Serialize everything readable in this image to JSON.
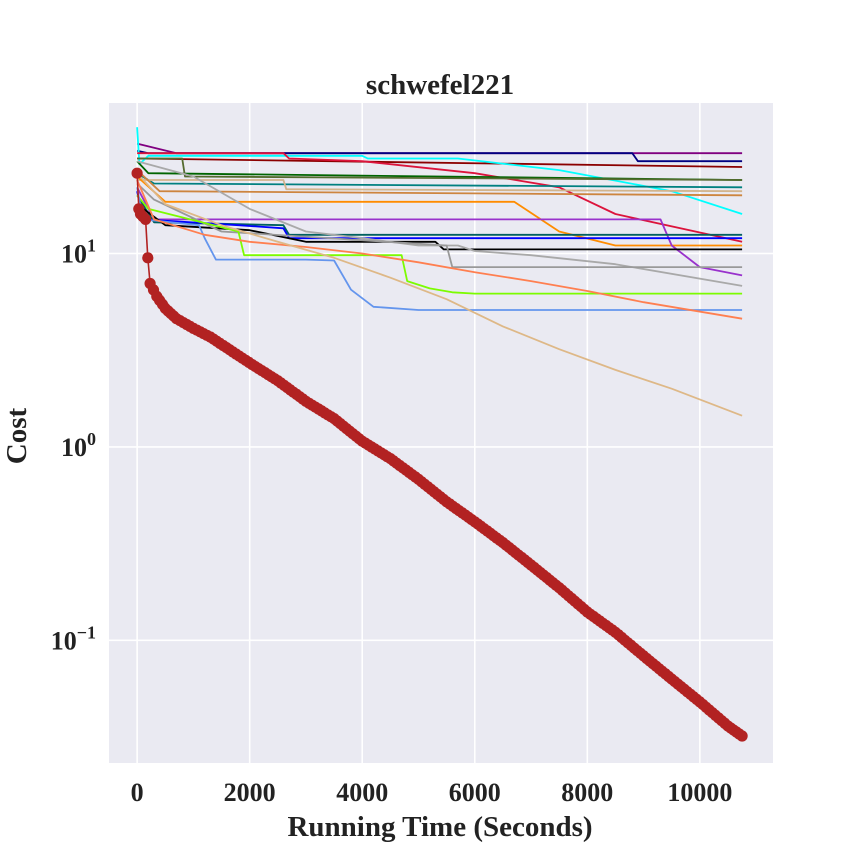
{
  "chart_data": {
    "type": "line",
    "title": "schwefel221",
    "xlabel": "Running Time (Seconds)",
    "ylabel": "Cost",
    "yscale": "log",
    "xlim": [
      -500,
      11300
    ],
    "ylim": [
      0.0232,
      60
    ],
    "grid": true,
    "background": "#eaeaf2",
    "x_ticks": [
      {
        "value": 0,
        "label": "0"
      },
      {
        "value": 2000,
        "label": "2000"
      },
      {
        "value": 4000,
        "label": "4000"
      },
      {
        "value": 6000,
        "label": "6000"
      },
      {
        "value": 8000,
        "label": "8000"
      },
      {
        "value": 10000,
        "label": "10000"
      }
    ],
    "y_ticks": [
      {
        "value": 0.1,
        "base": "10",
        "exp": "−1"
      },
      {
        "value": 1,
        "base": "10",
        "exp": "0"
      },
      {
        "value": 10,
        "base": "10",
        "exp": "1"
      }
    ],
    "series": [
      {
        "name": "purple",
        "color": "#800080",
        "x": [
          0,
          700,
          10750
        ],
        "y": [
          37,
          33,
          33
        ]
      },
      {
        "name": "navy",
        "color": "#000080",
        "x": [
          0,
          200,
          8800,
          8900,
          10750
        ],
        "y": [
          34,
          33,
          33,
          30,
          30
        ]
      },
      {
        "name": "darkred",
        "color": "#8b0000",
        "x": [
          0,
          10750
        ],
        "y": [
          31,
          28
        ]
      },
      {
        "name": "cyan",
        "color": "#00ffff",
        "x": [
          0,
          40,
          200,
          4000,
          4100,
          5700,
          7500,
          9500,
          10750
        ],
        "y": [
          45,
          29,
          32,
          32,
          31,
          31,
          27,
          21,
          16
        ]
      },
      {
        "name": "crimson",
        "color": "#dc143c",
        "x": [
          0,
          2600,
          2700,
          4000,
          6000,
          7500,
          8500,
          10750
        ],
        "y": [
          33,
          33,
          31,
          30,
          26,
          22,
          16,
          11.5
        ]
      },
      {
        "name": "darkgreen",
        "color": "#006400",
        "x": [
          0,
          200,
          10750
        ],
        "y": [
          30,
          26,
          24
        ]
      },
      {
        "name": "darkolive",
        "color": "#556b2f",
        "x": [
          0,
          800,
          850,
          10750
        ],
        "y": [
          31,
          31,
          25,
          24
        ]
      },
      {
        "name": "teal",
        "color": "#008080",
        "x": [
          0,
          300,
          10750
        ],
        "y": [
          26,
          23,
          22
        ]
      },
      {
        "name": "tan",
        "color": "#d2b48c",
        "x": [
          0,
          2600,
          2650,
          10750
        ],
        "y": [
          24,
          24,
          21.5,
          21
        ]
      },
      {
        "name": "peru",
        "color": "#cd853f",
        "x": [
          0,
          400,
          10750
        ],
        "y": [
          27,
          21,
          20
        ]
      },
      {
        "name": "darkorange",
        "color": "#ff8c00",
        "x": [
          0,
          500,
          5500,
          6700,
          7500,
          8500,
          10750
        ],
        "y": [
          25,
          18.5,
          18.5,
          18.5,
          13,
          11,
          11
        ]
      },
      {
        "name": "mediumorchid",
        "color": "#9932cc",
        "x": [
          0,
          300,
          9300,
          9500,
          10000,
          10750
        ],
        "y": [
          22,
          15,
          15,
          11,
          8.5,
          7.7
        ]
      },
      {
        "name": "bluegreen",
        "color": "#006060",
        "x": [
          0,
          300,
          2600,
          2700,
          10750
        ],
        "y": [
          20,
          14.5,
          14,
          12.5,
          12.5
        ]
      },
      {
        "name": "blue",
        "color": "#0000ff",
        "x": [
          0,
          100,
          1800,
          2600,
          2700,
          10750
        ],
        "y": [
          21,
          15,
          14,
          13.5,
          12,
          12
        ]
      },
      {
        "name": "black",
        "color": "#000000",
        "x": [
          0,
          500,
          2000,
          3000,
          5300,
          5450,
          10750
        ],
        "y": [
          18,
          14,
          13.2,
          11.5,
          11.5,
          10.5,
          10.5
        ]
      },
      {
        "name": "darkgray",
        "color": "#a9a9a9",
        "x": [
          0,
          1000,
          2000,
          3000,
          4000,
          5000,
          5700,
          6000,
          7000,
          8500,
          10750
        ],
        "y": [
          30,
          25,
          17,
          13,
          12,
          11,
          11,
          10.3,
          9.8,
          8.8,
          6.8
        ]
      },
      {
        "name": "gray",
        "color": "#999999",
        "x": [
          0,
          300,
          1500,
          5500,
          5600,
          6000,
          10750
        ],
        "y": [
          23,
          19,
          13,
          11,
          8.5,
          8.5,
          8.5
        ]
      },
      {
        "name": "chartreuse",
        "color": "#7cfc00",
        "x": [
          0,
          200,
          1800,
          1900,
          3000,
          4700,
          4800,
          5200,
          5600,
          6000,
          10750
        ],
        "y": [
          20,
          17,
          13,
          9.8,
          9.8,
          9.8,
          7.2,
          6.6,
          6.3,
          6.2,
          6.2
        ]
      },
      {
        "name": "cornflowerblue",
        "color": "#6495ed",
        "x": [
          0,
          100,
          1100,
          1200,
          1400,
          3000,
          3500,
          3800,
          4200,
          5000,
          10750
        ],
        "y": [
          22,
          15,
          14,
          12,
          9.3,
          9.3,
          9.2,
          6.5,
          5.3,
          5.1,
          5.1
        ]
      },
      {
        "name": "coral",
        "color": "#ff7f50",
        "x": [
          0,
          300,
          1200,
          2000,
          3000,
          4000,
          5000,
          6000,
          7000,
          8000,
          9000,
          10750
        ],
        "y": [
          24,
          15,
          12.5,
          11.5,
          10.8,
          10,
          9,
          8,
          7.2,
          6.4,
          5.6,
          4.6
        ]
      },
      {
        "name": "burlywood",
        "color": "#deb887",
        "x": [
          0,
          500,
          1500,
          2500,
          3500,
          4500,
          5500,
          6500,
          7500,
          8500,
          9500,
          10750
        ],
        "y": [
          26,
          18,
          14,
          11.5,
          9.5,
          7.5,
          5.8,
          4.2,
          3.2,
          2.5,
          2,
          1.45
        ]
      },
      {
        "name": "firebrick-markers",
        "color": "#b22222",
        "markers": true,
        "x": [
          0,
          30,
          60,
          150,
          190,
          230,
          350,
          500,
          700,
          1000,
          1300,
          1700,
          2100,
          2500,
          3000,
          3500,
          4000,
          4500,
          5000,
          5500,
          6000,
          6500,
          7000,
          7500,
          8000,
          8500,
          9000,
          9500,
          10000,
          10500,
          10750
        ],
        "y": [
          26,
          17,
          16,
          15,
          9.5,
          7.0,
          6.0,
          5.2,
          4.6,
          4.1,
          3.7,
          3.1,
          2.6,
          2.2,
          1.72,
          1.4,
          1.07,
          0.87,
          0.68,
          0.52,
          0.41,
          0.32,
          0.245,
          0.187,
          0.14,
          0.11,
          0.083,
          0.063,
          0.048,
          0.036,
          0.032
        ]
      }
    ]
  }
}
